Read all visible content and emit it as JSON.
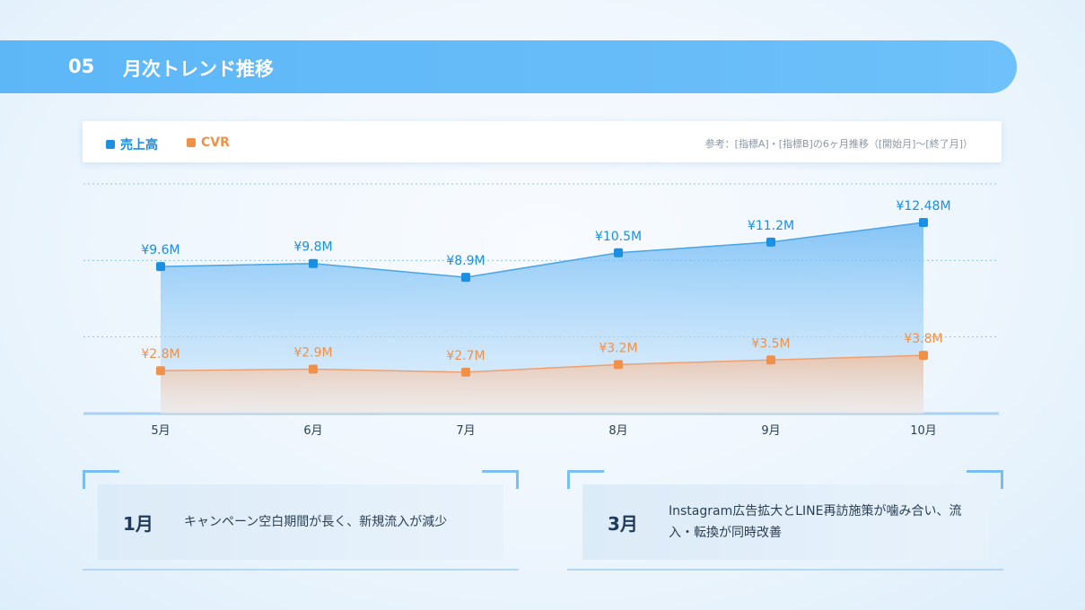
{
  "header": {
    "number": "05",
    "title": "月次トレンド推移"
  },
  "legend": {
    "items": [
      {
        "label": "売上高",
        "color": "#1a8fe3"
      },
      {
        "label": "CVR",
        "color": "#f0914a"
      }
    ],
    "note": "参考：[指標A]・[指標B]の6ヶ月推移（[開始月]〜[終了月]）"
  },
  "chart_data": {
    "type": "area",
    "categories": [
      "5月",
      "6月",
      "7月",
      "8月",
      "9月",
      "10月"
    ],
    "series": [
      {
        "name": "売上高",
        "color": "#1a8fe3",
        "values": [
          9.6,
          9.8,
          8.9,
          10.5,
          11.2,
          12.48
        ],
        "labels": [
          "¥9.6M",
          "¥9.8M",
          "¥8.9M",
          "¥10.5M",
          "¥11.2M",
          "¥12.48M"
        ]
      },
      {
        "name": "CVR",
        "color": "#f0914a",
        "values": [
          2.8,
          2.9,
          2.7,
          3.2,
          3.5,
          3.8
        ],
        "labels": [
          "¥2.8M",
          "¥2.9M",
          "¥2.7M",
          "¥3.2M",
          "¥3.5M",
          "¥3.8M"
        ]
      }
    ],
    "ylim": [
      0,
      15
    ],
    "grid": true,
    "legend_position": "top-left"
  },
  "notes": [
    {
      "month": "1月",
      "text": "キャンペーン空白期間が長く、新規流入が減少"
    },
    {
      "month": "3月",
      "text": "Instagram広告拡大とLINE再訪施策が噛み合い、流入・転換が同時改善"
    }
  ]
}
